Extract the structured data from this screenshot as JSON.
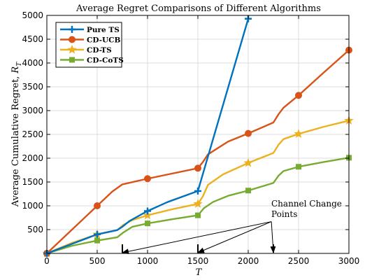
{
  "chart_data": {
    "type": "line",
    "title": "Average Regret Comparisons of Different Algorithms",
    "xlabel": "T",
    "ylabel": "Average Cumulative Regret, ",
    "ylabel_symbol": "R",
    "ylabel_sub": "T",
    "xlim": [
      0,
      3000
    ],
    "ylim": [
      0,
      5000
    ],
    "xticks": [
      0,
      500,
      1000,
      1500,
      2000,
      2500,
      3000
    ],
    "yticks": [
      500,
      1000,
      1500,
      2000,
      2500,
      3000,
      3500,
      4000,
      4500,
      5000
    ],
    "grid": true,
    "legend_position": "top-left",
    "series": [
      {
        "name": "Pure TS",
        "color": "#0072BD",
        "marker": "plus",
        "line": [
          [
            0,
            0
          ],
          [
            250,
            200
          ],
          [
            500,
            400
          ],
          [
            700,
            490
          ],
          [
            750,
            560
          ],
          [
            820,
            680
          ],
          [
            1000,
            890
          ],
          [
            1200,
            1080
          ],
          [
            1500,
            1310
          ],
          [
            2000,
            4930
          ]
        ],
        "markers": [
          [
            0,
            0
          ],
          [
            500,
            400
          ],
          [
            1000,
            890
          ],
          [
            1500,
            1310
          ],
          [
            2000,
            4930
          ]
        ]
      },
      {
        "name": "CD-UCB",
        "color": "#D95319",
        "marker": "circle",
        "line": [
          [
            0,
            0
          ],
          [
            250,
            500
          ],
          [
            500,
            1000
          ],
          [
            650,
            1300
          ],
          [
            750,
            1450
          ],
          [
            1000,
            1570
          ],
          [
            1250,
            1680
          ],
          [
            1500,
            1790
          ],
          [
            1550,
            1920
          ],
          [
            1600,
            2080
          ],
          [
            1800,
            2350
          ],
          [
            2000,
            2520
          ],
          [
            2250,
            2750
          ],
          [
            2300,
            2920
          ],
          [
            2350,
            3060
          ],
          [
            2500,
            3320
          ],
          [
            2750,
            3800
          ],
          [
            3000,
            4270
          ]
        ],
        "markers": [
          [
            0,
            0
          ],
          [
            500,
            1000
          ],
          [
            1000,
            1570
          ],
          [
            1500,
            1790
          ],
          [
            2000,
            2520
          ],
          [
            2500,
            3320
          ],
          [
            3000,
            4270
          ]
        ]
      },
      {
        "name": "CD-TS",
        "color": "#EDB120",
        "marker": "star",
        "line": [
          [
            0,
            0
          ],
          [
            250,
            220
          ],
          [
            500,
            400
          ],
          [
            700,
            490
          ],
          [
            760,
            600
          ],
          [
            850,
            700
          ],
          [
            1000,
            800
          ],
          [
            1250,
            930
          ],
          [
            1500,
            1040
          ],
          [
            1550,
            1200
          ],
          [
            1600,
            1440
          ],
          [
            1750,
            1660
          ],
          [
            2000,
            1900
          ],
          [
            2250,
            2110
          ],
          [
            2300,
            2280
          ],
          [
            2350,
            2400
          ],
          [
            2500,
            2510
          ],
          [
            2750,
            2660
          ],
          [
            3000,
            2790
          ]
        ],
        "markers": [
          [
            0,
            0
          ],
          [
            500,
            400
          ],
          [
            1000,
            800
          ],
          [
            1500,
            1040
          ],
          [
            2000,
            1900
          ],
          [
            2500,
            2510
          ],
          [
            3000,
            2790
          ]
        ]
      },
      {
        "name": "CD-CoTS",
        "color": "#77AC30",
        "marker": "square",
        "line": [
          [
            0,
            0
          ],
          [
            250,
            160
          ],
          [
            500,
            270
          ],
          [
            700,
            340
          ],
          [
            760,
            440
          ],
          [
            850,
            560
          ],
          [
            1000,
            630
          ],
          [
            1250,
            720
          ],
          [
            1500,
            800
          ],
          [
            1560,
            950
          ],
          [
            1650,
            1080
          ],
          [
            1800,
            1210
          ],
          [
            2000,
            1320
          ],
          [
            2250,
            1480
          ],
          [
            2300,
            1630
          ],
          [
            2350,
            1730
          ],
          [
            2500,
            1820
          ],
          [
            2750,
            1920
          ],
          [
            3000,
            2010
          ]
        ],
        "markers": [
          [
            0,
            0
          ],
          [
            500,
            270
          ],
          [
            1000,
            630
          ],
          [
            1500,
            800
          ],
          [
            2000,
            1320
          ],
          [
            2500,
            1820
          ],
          [
            3000,
            2010
          ]
        ]
      }
    ],
    "annotation": {
      "text_line1": "Channel Change",
      "text_line2": "Points",
      "anchor": [
        2230,
        1050
      ],
      "arrow_targets": [
        [
          750,
          0
        ],
        [
          1500,
          0
        ],
        [
          2250,
          0
        ]
      ]
    }
  }
}
